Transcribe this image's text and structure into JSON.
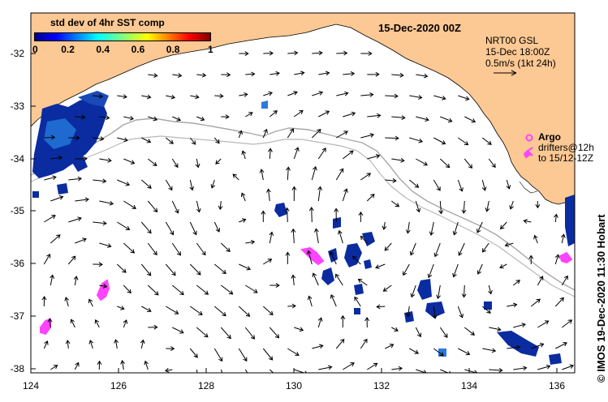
{
  "map": {
    "date_title": "15-Dec-2020 00Z",
    "colorbar": {
      "title": "std dev of 4hr SST comp",
      "ticks": [
        "0",
        "0.2",
        "0.4",
        "0.6",
        "0.8",
        "1"
      ]
    },
    "current_legend": {
      "line1": "NRT00 GSL",
      "line2": "15-Dec 18:00Z",
      "line3": "0.5m/s (1kt 24h)"
    },
    "argo_legend": {
      "title": "Argo",
      "line1": "drifters@12h",
      "line2": "to 15/12-12Z"
    },
    "credit": "© IMOS 19-Dec-2020 11:30 Hobart",
    "lon_ticks": [
      "124",
      "126",
      "128",
      "130",
      "132",
      "134",
      "136"
    ],
    "lat_ticks": [
      "-32",
      "-33",
      "-34",
      "-35",
      "-36",
      "-37",
      "-38"
    ],
    "colors": {
      "land": "#fcc893",
      "ocean": "#ffffff",
      "argo": "#ff44ff",
      "sst_low": "#0a2ca0",
      "contour": "#a8a8a8"
    }
  }
}
